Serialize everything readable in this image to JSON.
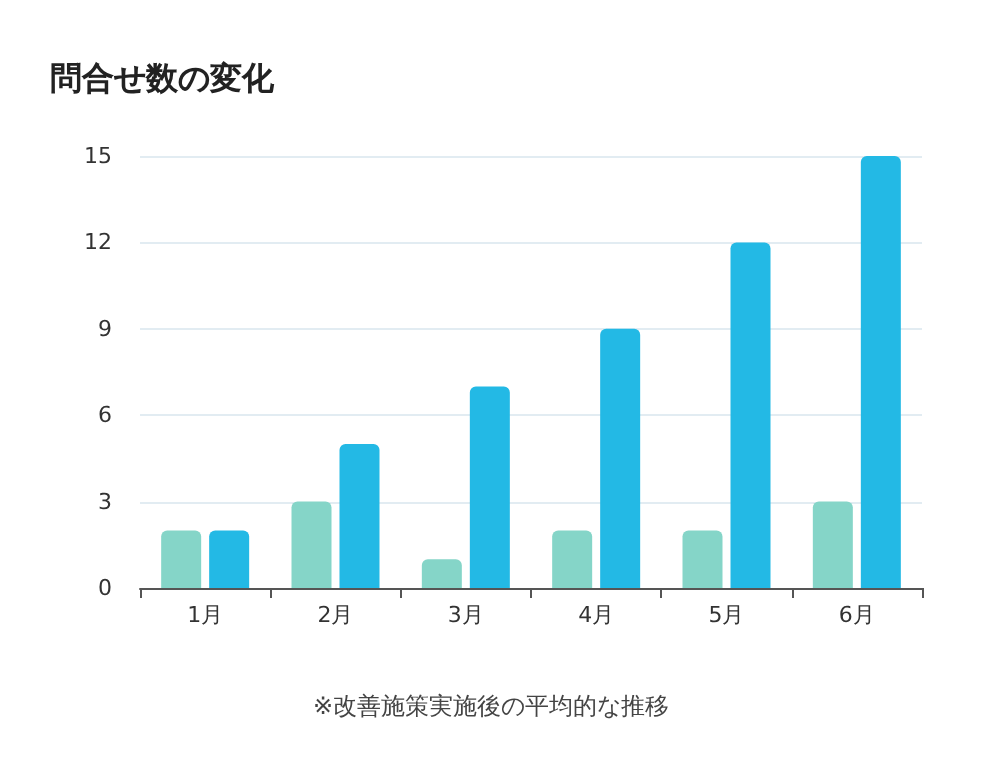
{
  "chart_data": {
    "type": "bar",
    "title": "問合せ数の変化",
    "categories": [
      "1月",
      "2月",
      "3月",
      "4月",
      "5月",
      "6月"
    ],
    "series": [
      {
        "color": "#85d5c8",
        "values": [
          2,
          3,
          1,
          2,
          2,
          3
        ]
      },
      {
        "color": "#23b9e5",
        "values": [
          2,
          5,
          7,
          9,
          12,
          15
        ]
      }
    ],
    "ylim": [
      0,
      15
    ],
    "yticks": [
      0,
      3,
      6,
      9,
      12,
      15
    ],
    "grid": "y",
    "annotations": [
      "※改善施策実施後の平均的な推移"
    ]
  }
}
